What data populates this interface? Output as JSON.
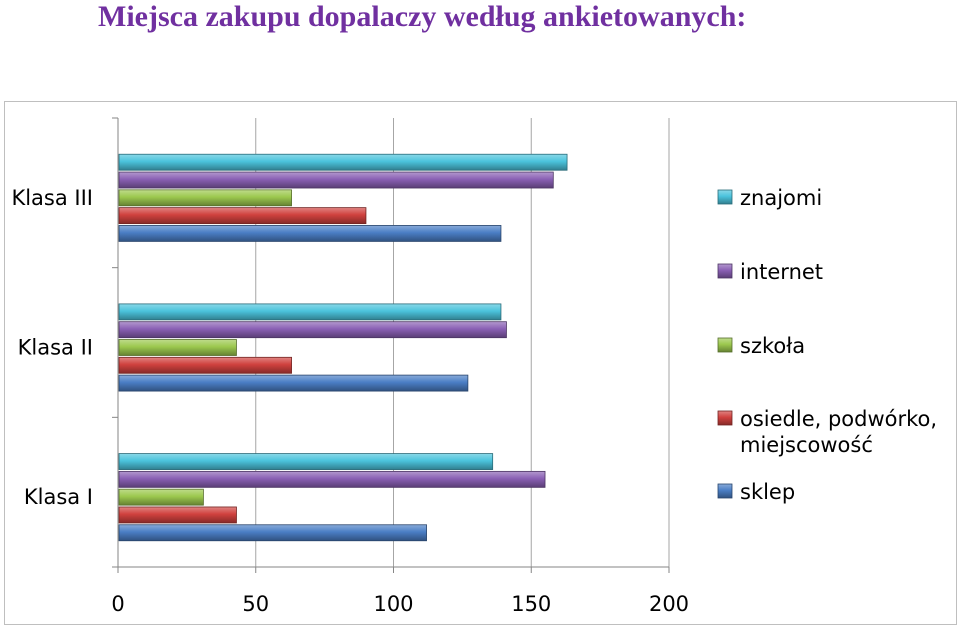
{
  "title": "Miejsca zakupu dopalaczy według ankietowanych:",
  "chart_data": {
    "type": "bar",
    "orientation": "horizontal",
    "style": "3d-cylinder-bars",
    "categories": [
      "Klasa III",
      "Klasa II",
      "Klasa I"
    ],
    "series": [
      {
        "name": "znajomi",
        "color": "#4bc3dc",
        "values": [
          163,
          139,
          136
        ]
      },
      {
        "name": "internet",
        "color": "#8a60b4",
        "values": [
          158,
          141,
          155
        ]
      },
      {
        "name": "szkoła",
        "color": "#9cc84e",
        "values": [
          63,
          43,
          31
        ]
      },
      {
        "name": "osiedle, podwórko, miejscowość",
        "color": "#d0413e",
        "values": [
          90,
          63,
          43
        ]
      },
      {
        "name": "sklep",
        "color": "#4a7ec5",
        "values": [
          139,
          127,
          112
        ]
      }
    ],
    "xlim": [
      0,
      200
    ],
    "xticks": [
      "0",
      "50",
      "100",
      "150",
      "200"
    ],
    "grid": "vertical",
    "legend": "right"
  }
}
